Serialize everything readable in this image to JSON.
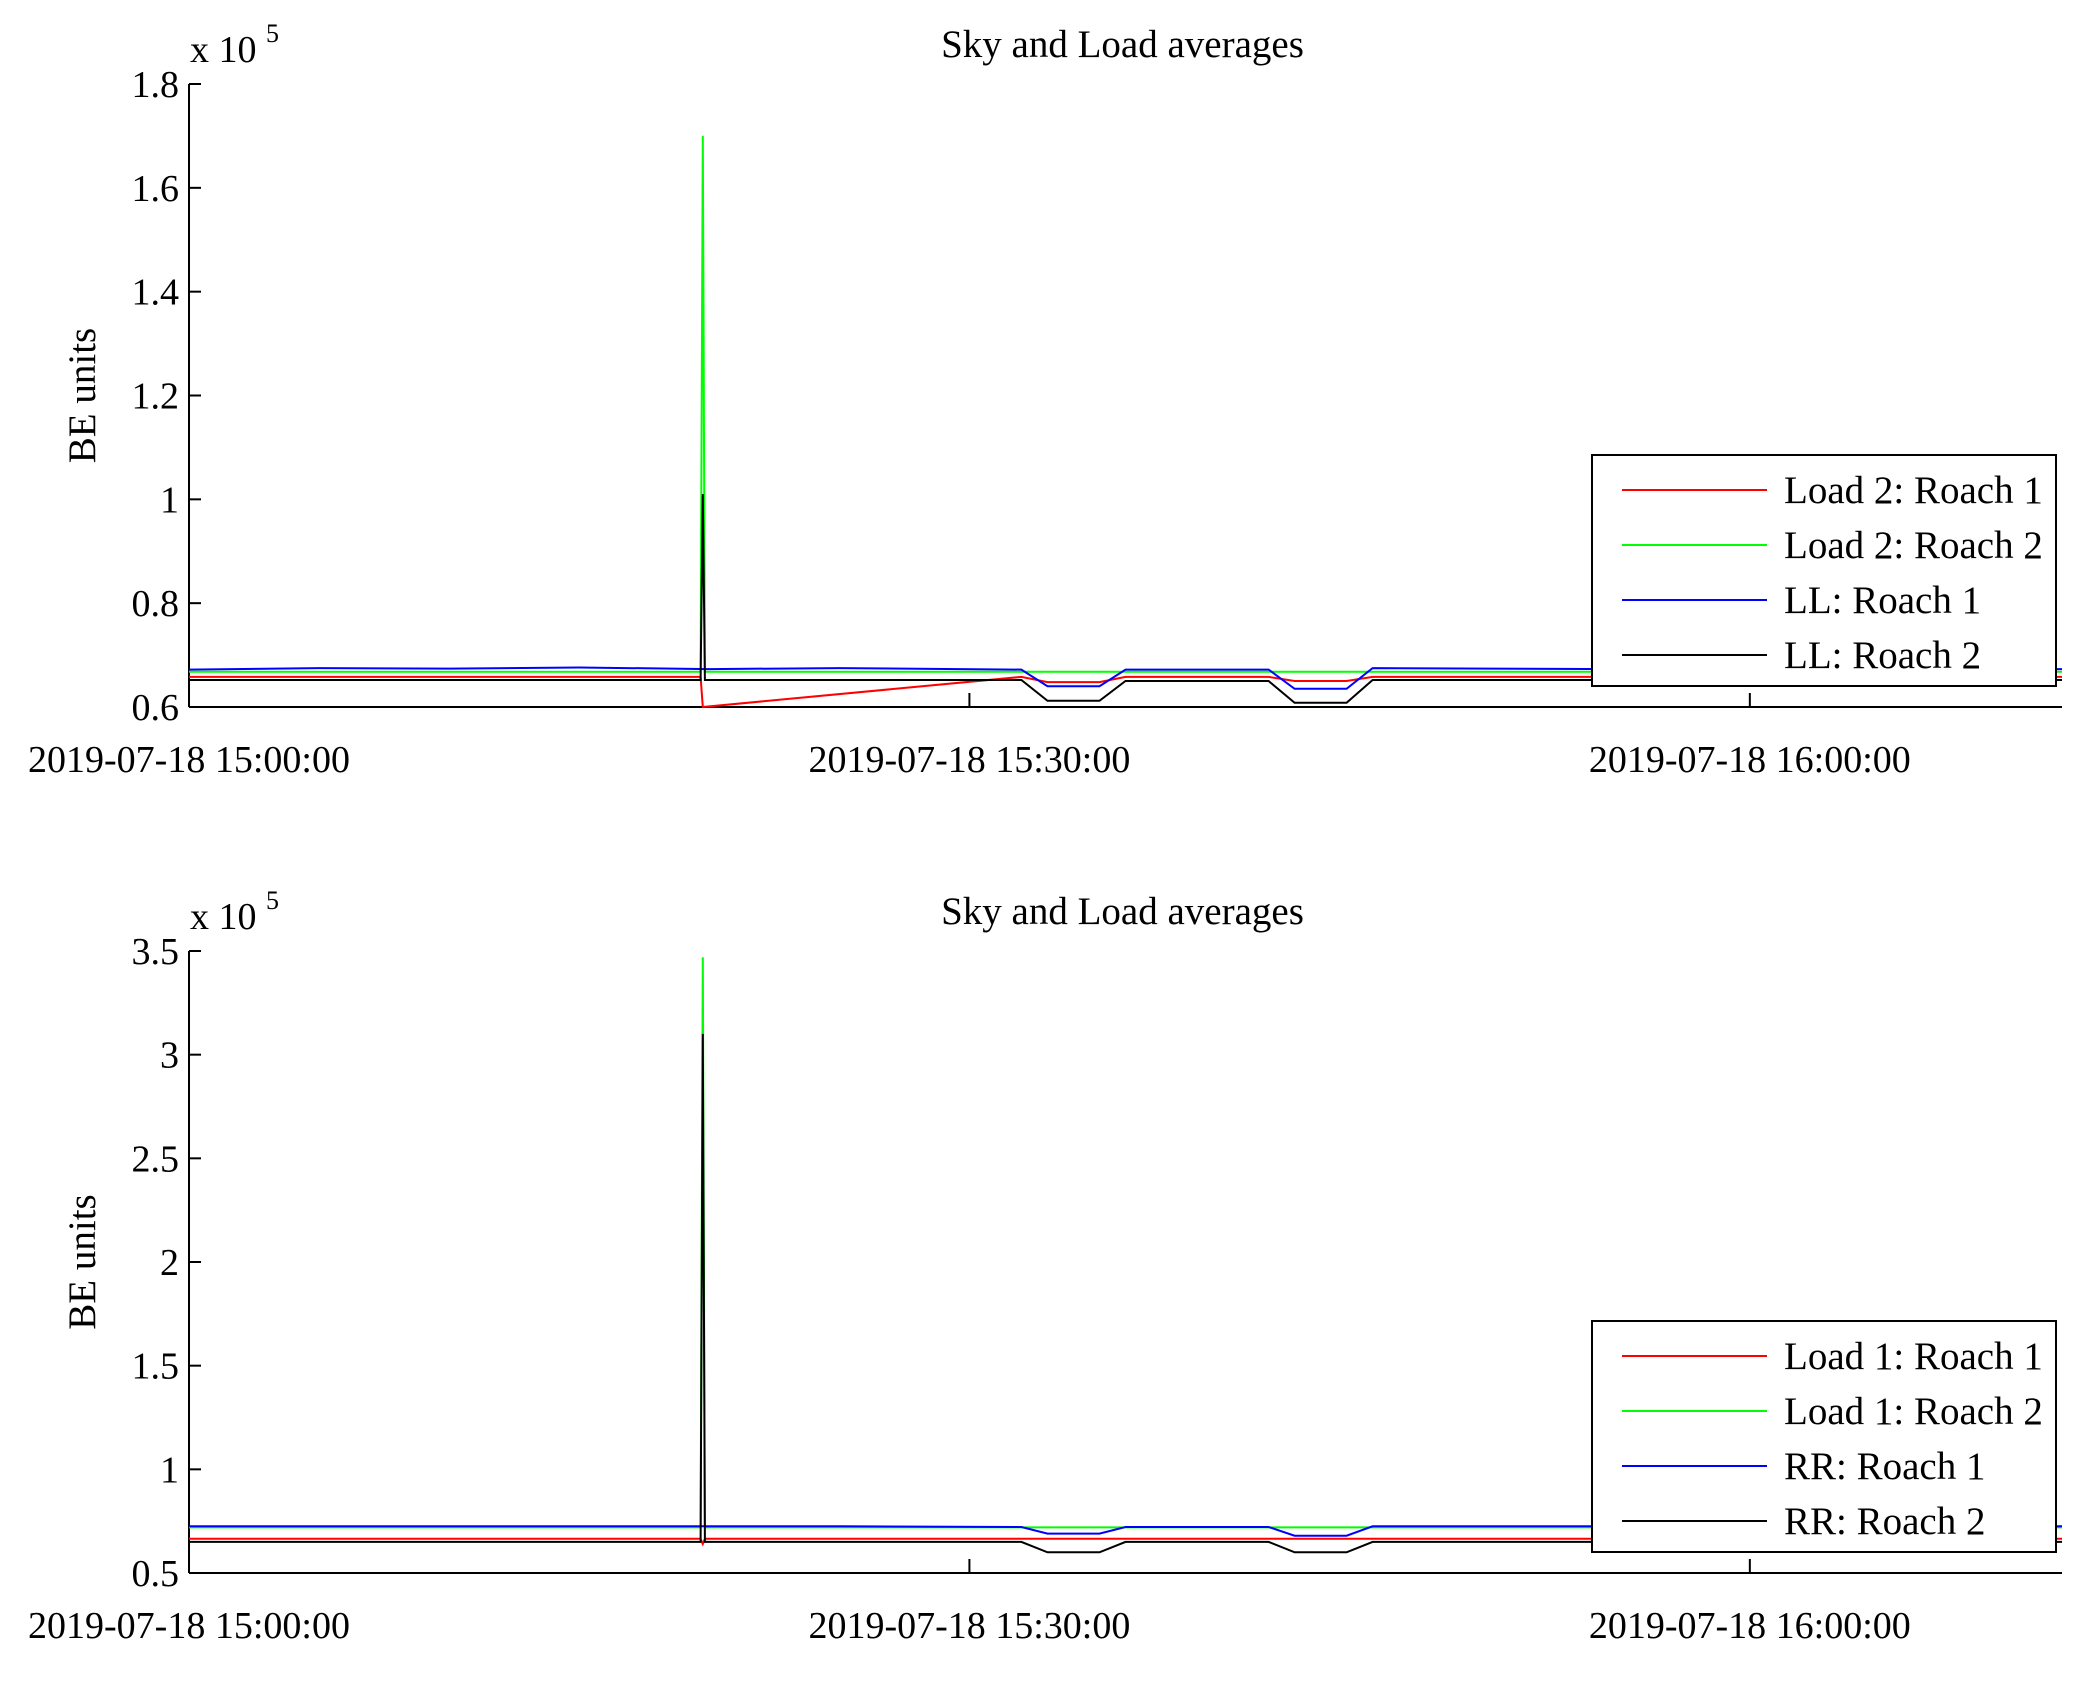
{
  "chart_data": [
    {
      "type": "line",
      "title": "Sky and Load averages",
      "xlabel": "",
      "ylabel": "BE units",
      "y_exponent_label": "x 10",
      "y_exponent": "5",
      "xlim": [
        "2019-07-18 15:00:00",
        "2019-07-18 16:12:00"
      ],
      "ylim": [
        0.6,
        1.8
      ],
      "yticks": [
        0.6,
        0.8,
        1,
        1.2,
        1.4,
        1.6,
        1.8
      ],
      "ytick_labels": [
        "0.6",
        "0.8",
        "1",
        "1.2",
        "1.4",
        "1.6",
        "1.8"
      ],
      "xticks": [
        "2019-07-18 15:00:00",
        "2019-07-18 15:30:00",
        "2019-07-18 16:00:00"
      ],
      "xtick_labels": [
        "2019-07-18 15:00:00",
        "2019-07-18 15:30:00",
        "2019-07-18 16:00:00"
      ],
      "grid": false,
      "legend_position": "bottom-right",
      "series": [
        {
          "name": "Load 2: Roach 1",
          "color": "#ff0000",
          "x": [
            "15:00:00",
            "15:19:40",
            "15:19:45",
            "15:32:00",
            "15:33:00",
            "15:35:00",
            "15:36:00",
            "15:41:30",
            "15:42:30",
            "15:44:30",
            "15:45:30",
            "16:12:00"
          ],
          "y": [
            0.658,
            0.658,
            0.6,
            0.658,
            0.648,
            0.648,
            0.658,
            0.658,
            0.65,
            0.65,
            0.658,
            0.658
          ]
        },
        {
          "name": "Load 2: Roach 2",
          "color": "#00ff00",
          "x": [
            "15:00:00",
            "15:19:40",
            "15:19:45",
            "15:19:50",
            "15:32:00",
            "15:33:00",
            "15:35:00",
            "15:36:00",
            "15:41:30",
            "15:42:30",
            "15:44:30",
            "15:45:30",
            "16:12:00"
          ],
          "y": [
            0.668,
            0.668,
            1.7,
            0.668,
            0.668,
            0.668,
            0.668,
            0.668,
            0.668,
            0.668,
            0.668,
            0.668,
            0.668
          ]
        },
        {
          "name": "LL: Roach 1",
          "color": "#0000ff",
          "x": [
            "15:00:00",
            "15:05:00",
            "15:10:00",
            "15:15:00",
            "15:20:00",
            "15:25:00",
            "15:32:00",
            "15:33:00",
            "15:35:00",
            "15:36:00",
            "15:41:30",
            "15:42:30",
            "15:44:30",
            "15:45:30",
            "15:50:00",
            "15:55:00",
            "16:00:00",
            "16:05:00",
            "16:12:00"
          ],
          "y": [
            0.672,
            0.675,
            0.674,
            0.676,
            0.673,
            0.675,
            0.672,
            0.64,
            0.64,
            0.672,
            0.672,
            0.635,
            0.635,
            0.675,
            0.674,
            0.673,
            0.674,
            0.673,
            0.673
          ]
        },
        {
          "name": "LL: Roach 2",
          "color": "#000000",
          "x": [
            "15:00:00",
            "15:19:40",
            "15:19:45",
            "15:19:50",
            "15:32:00",
            "15:33:00",
            "15:35:00",
            "15:36:00",
            "15:41:30",
            "15:42:30",
            "15:44:30",
            "15:45:30",
            "16:12:00"
          ],
          "y": [
            0.652,
            0.652,
            1.01,
            0.652,
            0.652,
            0.612,
            0.612,
            0.65,
            0.65,
            0.608,
            0.608,
            0.652,
            0.652
          ]
        }
      ]
    },
    {
      "type": "line",
      "title": "Sky and Load averages",
      "xlabel": "",
      "ylabel": "BE units",
      "y_exponent_label": "x 10",
      "y_exponent": "5",
      "xlim": [
        "2019-07-18 15:00:00",
        "2019-07-18 16:12:00"
      ],
      "ylim": [
        0.5,
        3.5
      ],
      "yticks": [
        0.5,
        1,
        1.5,
        2,
        2.5,
        3,
        3.5
      ],
      "ytick_labels": [
        "0.5",
        "1",
        "1.5",
        "2",
        "2.5",
        "3",
        "3.5"
      ],
      "xticks": [
        "2019-07-18 15:00:00",
        "2019-07-18 15:30:00",
        "2019-07-18 16:00:00"
      ],
      "xtick_labels": [
        "2019-07-18 15:00:00",
        "2019-07-18 15:30:00",
        "2019-07-18 16:00:00"
      ],
      "grid": false,
      "legend_position": "bottom-right",
      "series": [
        {
          "name": "Load 1: Roach 1",
          "color": "#ff0000",
          "x": [
            "15:00:00",
            "15:19:40",
            "15:19:45",
            "15:19:50",
            "16:12:00"
          ],
          "y": [
            0.665,
            0.665,
            0.64,
            0.665,
            0.665
          ]
        },
        {
          "name": "Load 1: Roach 2",
          "color": "#00ff00",
          "x": [
            "15:00:00",
            "15:19:40",
            "15:19:45",
            "15:19:50",
            "15:32:00",
            "15:33:00",
            "15:35:00",
            "15:36:00",
            "15:41:30",
            "15:42:30",
            "15:44:30",
            "15:45:30",
            "16:12:00"
          ],
          "y": [
            0.72,
            0.72,
            3.47,
            0.72,
            0.72,
            0.72,
            0.72,
            0.72,
            0.72,
            0.72,
            0.72,
            0.72,
            0.72
          ]
        },
        {
          "name": "RR: Roach 1",
          "color": "#0000ff",
          "x": [
            "15:00:00",
            "15:10:00",
            "15:19:40",
            "15:25:00",
            "15:32:00",
            "15:33:00",
            "15:35:00",
            "15:36:00",
            "15:41:30",
            "15:42:30",
            "15:44:30",
            "15:45:30",
            "15:55:00",
            "16:12:00"
          ],
          "y": [
            0.725,
            0.725,
            0.725,
            0.725,
            0.722,
            0.69,
            0.69,
            0.722,
            0.722,
            0.68,
            0.68,
            0.725,
            0.725,
            0.725
          ]
        },
        {
          "name": "RR: Roach 2",
          "color": "#000000",
          "x": [
            "15:00:00",
            "15:19:40",
            "15:19:45",
            "15:19:50",
            "15:32:00",
            "15:33:00",
            "15:35:00",
            "15:36:00",
            "15:41:30",
            "15:42:30",
            "15:44:30",
            "15:45:30",
            "16:12:00"
          ],
          "y": [
            0.65,
            0.65,
            3.1,
            0.65,
            0.65,
            0.6,
            0.6,
            0.65,
            0.65,
            0.6,
            0.6,
            0.65,
            0.65
          ]
        }
      ]
    }
  ]
}
